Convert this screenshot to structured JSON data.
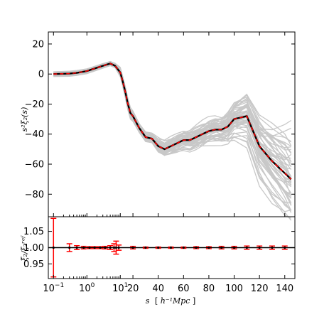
{
  "chart_data": {
    "type": "line",
    "upper_panel": {
      "ylabel": "s²ξ₂(s)",
      "ylim": [
        -95,
        28
      ],
      "y_ticks": [
        20,
        0,
        -20,
        -40,
        -60,
        -80
      ],
      "y_tick_labels": [
        "20",
        "0",
        "−20",
        "−40",
        "−60",
        "−80"
      ],
      "series": [
        {
          "role": "mean of mocks",
          "color": "#000000",
          "points": [
            [
              0.1,
              0
            ],
            [
              0.3,
              0.3
            ],
            [
              0.5,
              0.8
            ],
            [
              1,
              2
            ],
            [
              3,
              5.5
            ],
            [
              5,
              7
            ],
            [
              7,
              5.5
            ],
            [
              10,
              1
            ],
            [
              12,
              -5
            ],
            [
              14,
              -12
            ],
            [
              16,
              -20
            ],
            [
              18,
              -26
            ],
            [
              20,
              -28
            ],
            [
              25,
              -36
            ],
            [
              30,
              -42
            ],
            [
              35,
              -43
            ],
            [
              40,
              -48
            ],
            [
              45,
              -50
            ],
            [
              50,
              -48
            ],
            [
              55,
              -46
            ],
            [
              60,
              -44
            ],
            [
              65,
              -44
            ],
            [
              70,
              -42
            ],
            [
              75,
              -40
            ],
            [
              80,
              -38
            ],
            [
              85,
              -37
            ],
            [
              90,
              -37
            ],
            [
              95,
              -35
            ],
            [
              100,
              -30
            ],
            [
              110,
              -28
            ],
            [
              120,
              -48
            ],
            [
              130,
              -58
            ],
            [
              140,
              -66
            ],
            [
              145,
              -70
            ]
          ]
        },
        {
          "role": "reference model",
          "color": "#ff0000",
          "dashed": true,
          "points": [
            [
              0.1,
              0
            ],
            [
              0.3,
              0.3
            ],
            [
              0.5,
              0.8
            ],
            [
              1,
              2
            ],
            [
              3,
              5.5
            ],
            [
              5,
              7
            ],
            [
              7,
              5.5
            ],
            [
              10,
              1
            ],
            [
              12,
              -5
            ],
            [
              14,
              -12
            ],
            [
              16,
              -20
            ],
            [
              18,
              -26
            ],
            [
              20,
              -28
            ],
            [
              25,
              -36
            ],
            [
              30,
              -42
            ],
            [
              35,
              -43
            ],
            [
              40,
              -48
            ],
            [
              45,
              -50
            ],
            [
              50,
              -48
            ],
            [
              55,
              -46
            ],
            [
              60,
              -44
            ],
            [
              65,
              -44
            ],
            [
              70,
              -42
            ],
            [
              75,
              -40
            ],
            [
              80,
              -38
            ],
            [
              85,
              -37
            ],
            [
              90,
              -37
            ],
            [
              95,
              -35
            ],
            [
              100,
              -30
            ],
            [
              110,
              -28
            ],
            [
              120,
              -48
            ],
            [
              130,
              -58
            ],
            [
              140,
              -66
            ],
            [
              145,
              -70
            ]
          ]
        }
      ],
      "mock_band": {
        "color": "#c8c8c8",
        "count": 50,
        "note_spread": "grey curves widen from small s to large s"
      }
    },
    "lower_panel": {
      "ylabel": "ξ̄₂/ξ₂ʳᵉᶠ",
      "ylim": [
        0.905,
        1.095
      ],
      "y_ticks": [
        1.05,
        1.0,
        0.95
      ],
      "y_tick_labels": [
        "1.05",
        "1.00",
        "0.95"
      ],
      "reference_line": 1.0,
      "errorbars": {
        "color": "#ff0000",
        "points": [
          {
            "x": 0.1,
            "y": 1.0,
            "err": 0.09
          },
          {
            "x": 0.3,
            "y": 1.0,
            "err": 0.012
          },
          {
            "x": 0.5,
            "y": 1.0,
            "err": 0.006
          },
          {
            "x": 0.8,
            "y": 1.0,
            "err": 0.004
          },
          {
            "x": 1.2,
            "y": 1.0,
            "err": 0.003
          },
          {
            "x": 1.7,
            "y": 1.0,
            "err": 0.003
          },
          {
            "x": 2.5,
            "y": 1.0,
            "err": 0.003
          },
          {
            "x": 3.5,
            "y": 1.0,
            "err": 0.004
          },
          {
            "x": 5,
            "y": 1.0,
            "err": 0.006
          },
          {
            "x": 6.5,
            "y": 1.0,
            "err": 0.012
          },
          {
            "x": 7.5,
            "y": 1.0,
            "err": 0.02
          },
          {
            "x": 9,
            "y": 1.0,
            "err": 0.008
          },
          {
            "x": 20,
            "y": 1.0,
            "err": 0.004
          },
          {
            "x": 30,
            "y": 1.0,
            "err": 0.002
          },
          {
            "x": 40,
            "y": 1.0,
            "err": 0.002
          },
          {
            "x": 50,
            "y": 1.0,
            "err": 0.002
          },
          {
            "x": 60,
            "y": 1.0,
            "err": 0.002
          },
          {
            "x": 70,
            "y": 1.0,
            "err": 0.003
          },
          {
            "x": 80,
            "y": 1.0,
            "err": 0.003
          },
          {
            "x": 90,
            "y": 1.0,
            "err": 0.004
          },
          {
            "x": 100,
            "y": 1.0,
            "err": 0.004
          },
          {
            "x": 110,
            "y": 1.0,
            "err": 0.005
          },
          {
            "x": 120,
            "y": 1.0,
            "err": 0.005
          },
          {
            "x": 130,
            "y": 1.0,
            "err": 0.005
          },
          {
            "x": 140,
            "y": 1.0,
            "err": 0.005
          }
        ]
      }
    },
    "xaxis": {
      "scale": "log for s < 10, linear for s ≥ 10",
      "xlabel_parts": {
        "var": "s",
        "unit_open": "[",
        "unit": "h⁻¹Mpc",
        "unit_close": "]"
      },
      "ticks": [
        {
          "x": 0.1,
          "label_base": "10",
          "label_exp": "−1"
        },
        {
          "x": 1,
          "label_base": "10",
          "label_exp": "0"
        },
        {
          "x": 10,
          "label_base": "10",
          "label_exp": "1"
        },
        {
          "x": 20,
          "label": "20"
        },
        {
          "x": 40,
          "label": "40"
        },
        {
          "x": 60,
          "label": "60"
        },
        {
          "x": 80,
          "label": "80"
        },
        {
          "x": 100,
          "label": "100"
        },
        {
          "x": 120,
          "label": "120"
        },
        {
          "x": 140,
          "label": "140"
        }
      ],
      "xlim": [
        0.07,
        148
      ]
    },
    "grid": false
  }
}
